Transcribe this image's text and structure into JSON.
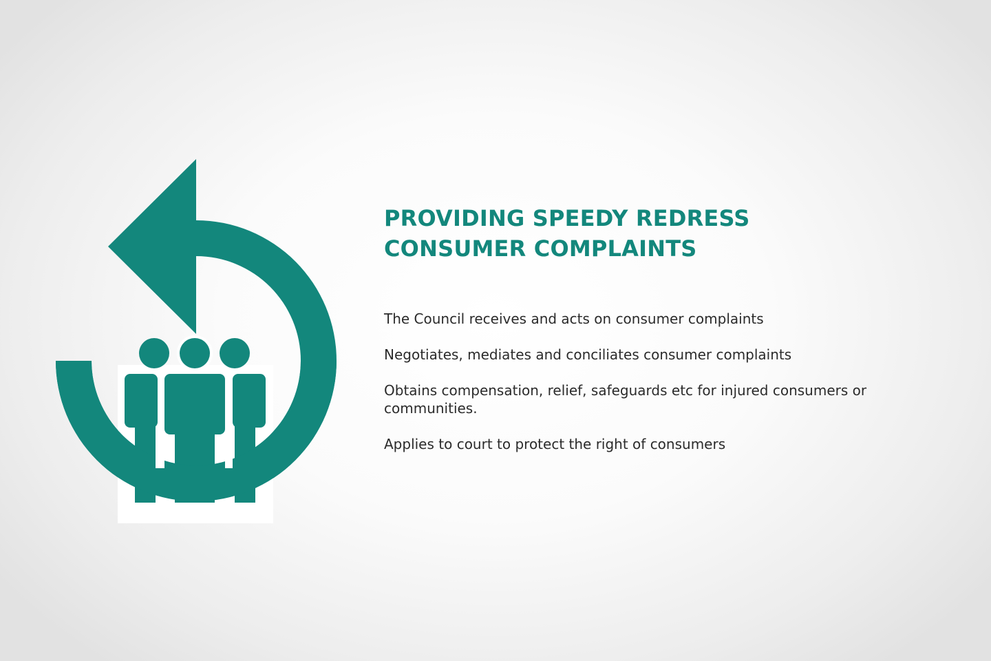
{
  "heading": {
    "line1": "PROVIDING SPEEDY REDRESS",
    "line2": "CONSUMER COMPLAINTS"
  },
  "points": [
    "The Council receives and acts on consumer complaints",
    "Negotiates, mediates and conciliates consumer complaints",
    "Obtains compensation, relief, safeguards etc for injured consumers or communities.",
    "Applies to court to protect the right of consumers"
  ],
  "colors": {
    "accent": "#13877c",
    "text": "#2b2b2b"
  },
  "icons": [
    "redress-arrow-icon",
    "consumer-group-icon"
  ]
}
